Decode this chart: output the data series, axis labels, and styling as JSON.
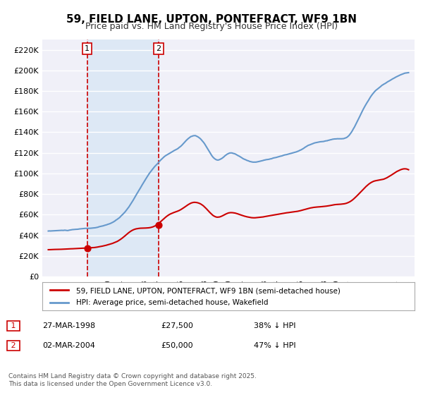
{
  "title": "59, FIELD LANE, UPTON, PONTEFRACT, WF9 1BN",
  "subtitle": "Price paid vs. HM Land Registry's House Price Index (HPI)",
  "red_label": "59, FIELD LANE, UPTON, PONTEFRACT, WF9 1BN (semi-detached house)",
  "blue_label": "HPI: Average price, semi-detached house, Wakefield",
  "footer": "Contains HM Land Registry data © Crown copyright and database right 2025.\nThis data is licensed under the Open Government Licence v3.0.",
  "sale1_label": "1",
  "sale1_date": "27-MAR-1998",
  "sale1_price": "£27,500",
  "sale1_hpi": "38% ↓ HPI",
  "sale1_year": 1998.23,
  "sale1_value": 27500,
  "sale2_label": "2",
  "sale2_date": "02-MAR-2004",
  "sale2_price": "£50,000",
  "sale2_hpi": "47% ↓ HPI",
  "sale2_year": 2004.17,
  "sale2_value": 50000,
  "ylabel_ticks": [
    "£0",
    "£20K",
    "£40K",
    "£60K",
    "£80K",
    "£100K",
    "£120K",
    "£140K",
    "£160K",
    "£180K",
    "£200K",
    "£220K"
  ],
  "ytick_values": [
    0,
    20000,
    40000,
    60000,
    80000,
    100000,
    120000,
    140000,
    160000,
    180000,
    200000,
    220000
  ],
  "ylim": [
    0,
    230000
  ],
  "xlim_start": 1994.5,
  "xlim_end": 2025.5,
  "background_color": "#ffffff",
  "plot_bg_color": "#f0f0f8",
  "grid_color": "#ffffff",
  "red_color": "#cc0000",
  "blue_color": "#6699cc",
  "shade_color": "#dde8f5",
  "vline_color": "#cc0000",
  "title_fontsize": 11,
  "subtitle_fontsize": 9
}
